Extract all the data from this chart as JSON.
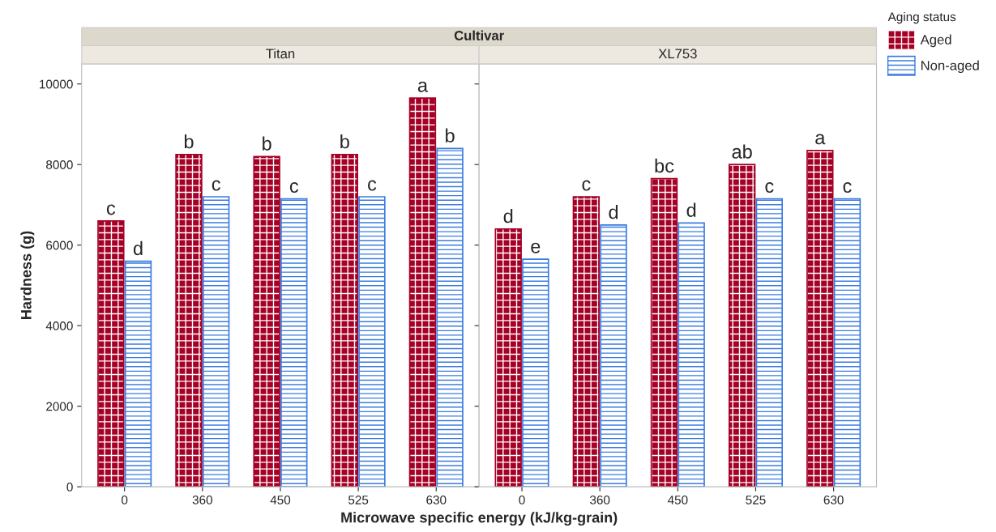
{
  "chart_data": [
    {
      "type": "bar",
      "title": "Titan",
      "annotations": [
        "Cultivar"
      ],
      "xlabel": "Microwave specific energy (kJ/kg-grain)",
      "ylabel": "Hardness (g)",
      "categories": [
        "0",
        "360",
        "450",
        "525",
        "630"
      ],
      "ylim": [
        0,
        10500
      ],
      "yticks": [
        0,
        2000,
        4000,
        6000,
        8000,
        10000
      ],
      "grid": false,
      "legend": "top right",
      "legend_title": "Aging status",
      "series": [
        {
          "name": "Aged",
          "color": "#a50026",
          "values": [
            6600,
            8250,
            8200,
            8250,
            9650
          ],
          "value_labels": [
            "c",
            "b",
            "b",
            "b",
            "a"
          ]
        },
        {
          "name": "Non-aged",
          "color": "#3a7be0",
          "values": [
            5600,
            7200,
            7150,
            7200,
            8400
          ],
          "value_labels": [
            "d",
            "c",
            "c",
            "c",
            "b"
          ]
        }
      ]
    },
    {
      "type": "bar",
      "title": "XL753",
      "categories": [
        "0",
        "360",
        "450",
        "525",
        "630"
      ],
      "ylim": [
        0,
        10500
      ],
      "yticks": [
        0,
        2000,
        4000,
        6000,
        8000,
        10000
      ],
      "grid": false,
      "tick_labels": "x",
      "series": [
        {
          "color": "#a50026",
          "values": [
            6400,
            7200,
            7650,
            8000,
            8350
          ],
          "value_labels": [
            "d",
            "c",
            "bc",
            "ab",
            "a"
          ]
        },
        {
          "color": "#3a7be0",
          "values": [
            5650,
            6500,
            6550,
            7150,
            7150
          ],
          "value_labels": [
            "e",
            "d",
            "d",
            "c",
            "c"
          ]
        }
      ]
    }
  ]
}
